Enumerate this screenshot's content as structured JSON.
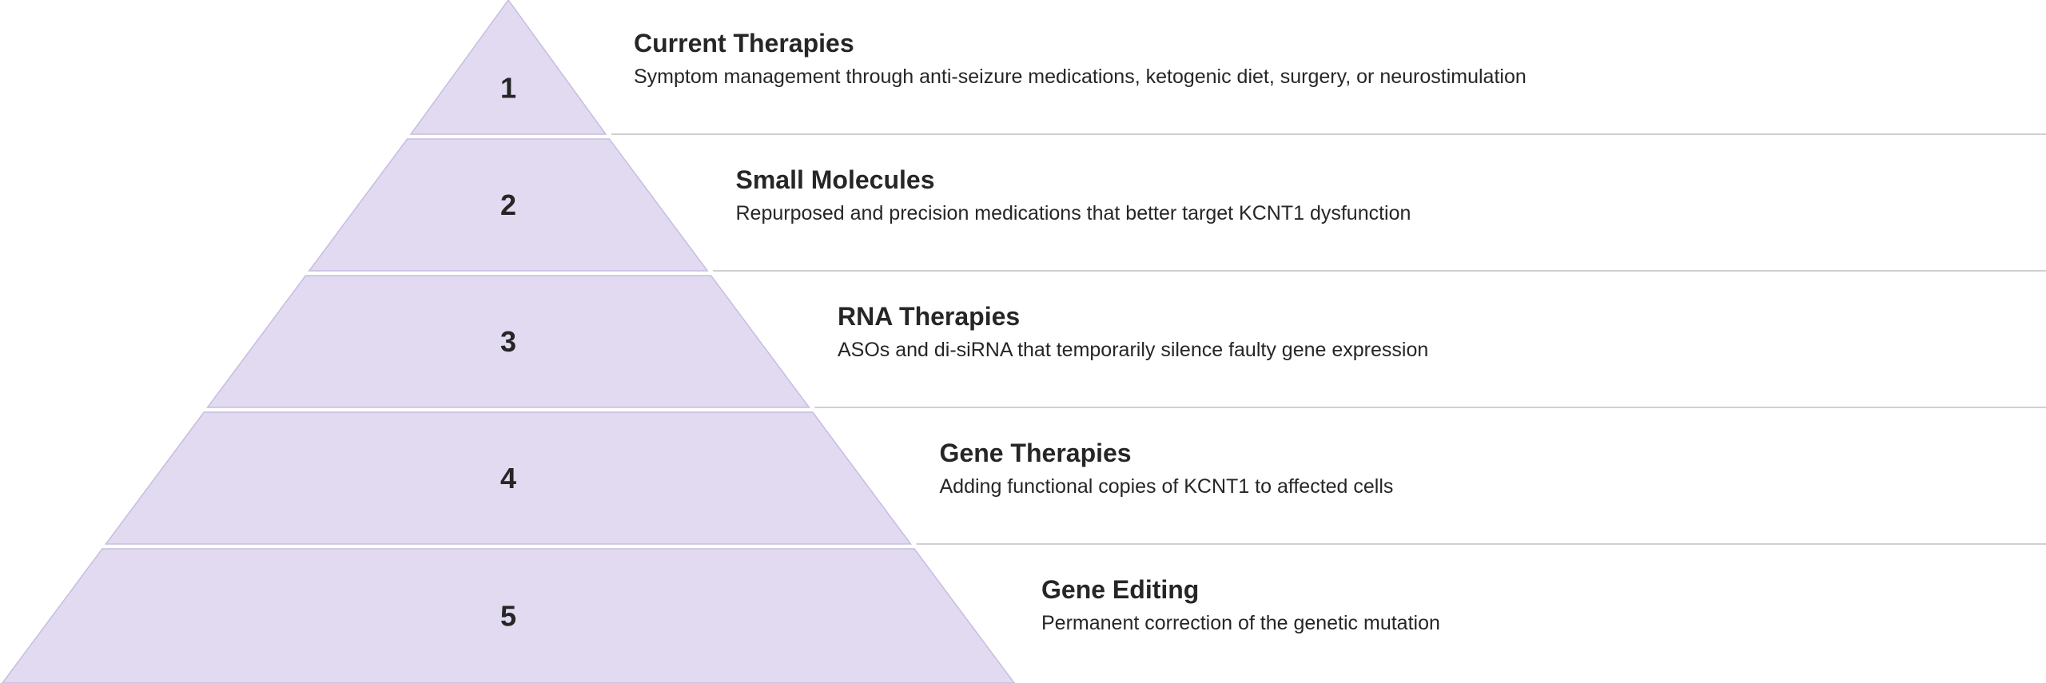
{
  "colors": {
    "tier_fill": "#e2daf1",
    "tier_stroke": "#c6bde0",
    "separator": "#d0d0d0",
    "text": "#262626"
  },
  "tiers": [
    {
      "number": "1",
      "title": "Current Therapies",
      "description": "Symptom management through anti-seizure medications, ketogenic diet, surgery, or neurostimulation"
    },
    {
      "number": "2",
      "title": "Small Molecules",
      "description": "Repurposed and precision medications that better target KCNT1 dysfunction"
    },
    {
      "number": "3",
      "title": "RNA Therapies",
      "description": "ASOs and di-siRNA that temporarily silence faulty gene expression"
    },
    {
      "number": "4",
      "title": "Gene Therapies",
      "description": "Adding functional copies of KCNT1 to affected cells"
    },
    {
      "number": "5",
      "title": "Gene Editing",
      "description": "Permanent correction of the genetic mutation"
    }
  ]
}
